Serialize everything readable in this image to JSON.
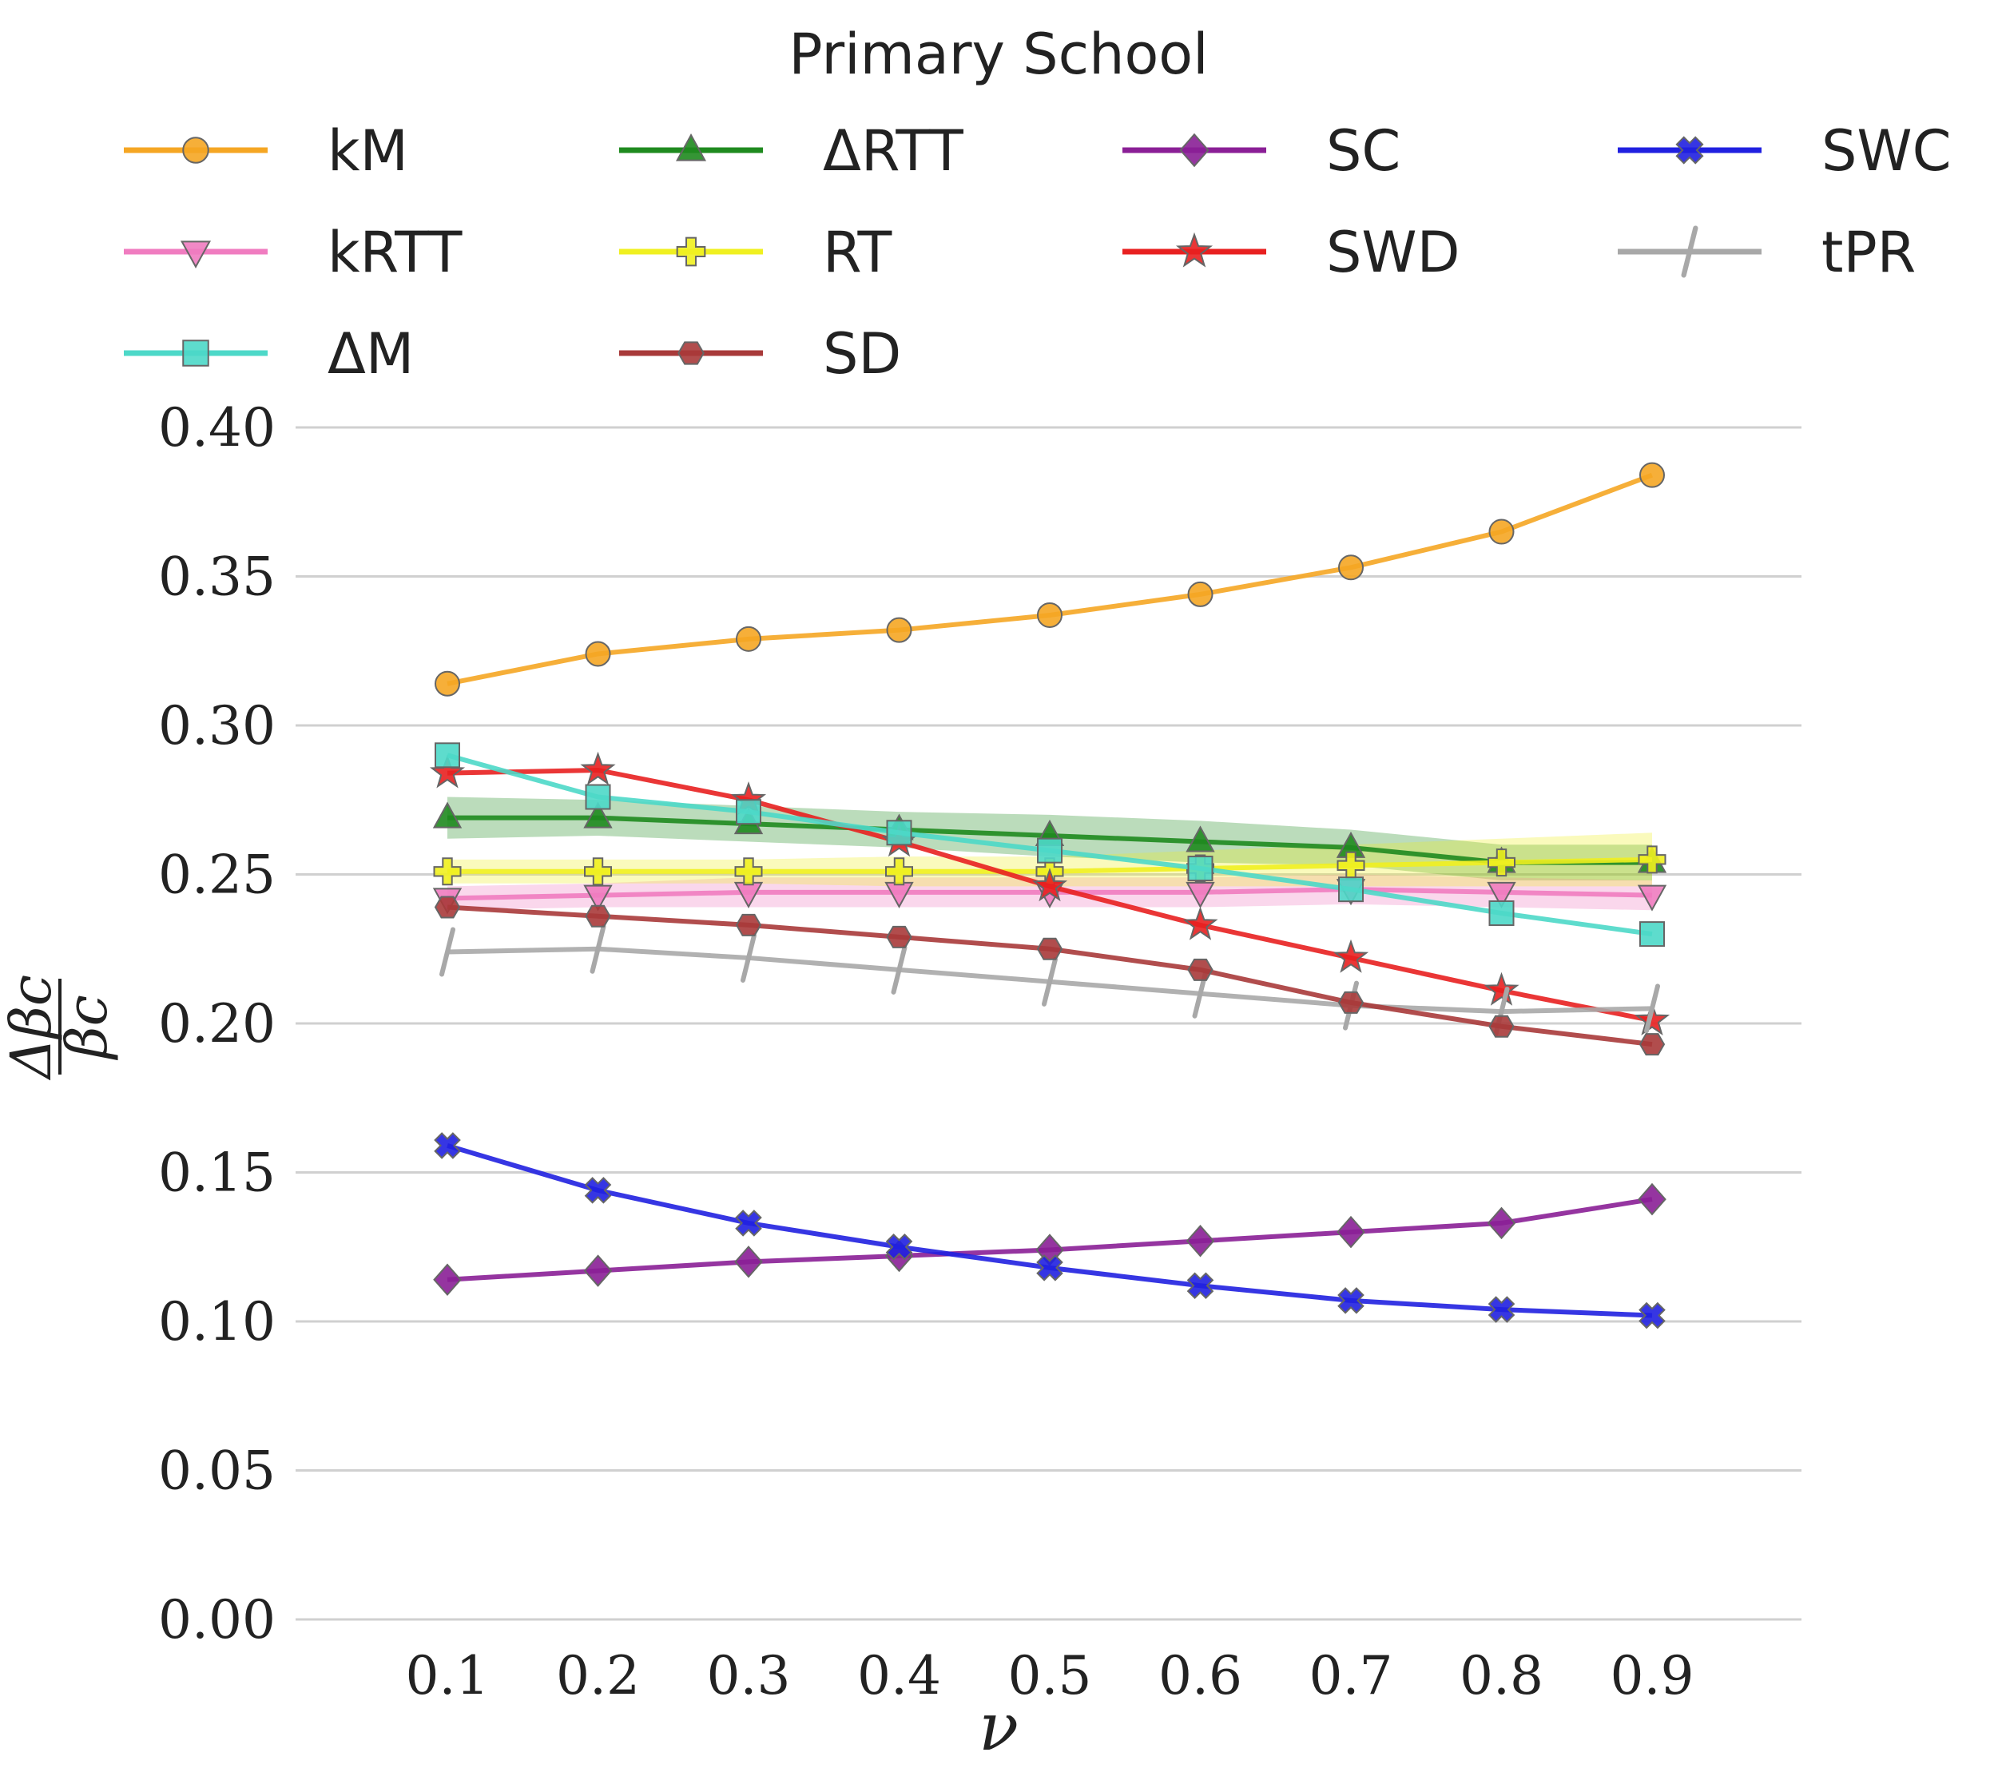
{
  "chart_data": {
    "type": "line",
    "title": "Primary School",
    "xlabel": "ν",
    "ylabel": "Δβc / βc",
    "ylabel_parts": {
      "numerator": "Δβc",
      "denominator": "βc"
    },
    "x": [
      0.1,
      0.2,
      0.3,
      0.4,
      0.5,
      0.6,
      0.7,
      0.8,
      0.9
    ],
    "x_tick_labels": [
      "0.1",
      "0.2",
      "0.3",
      "0.4",
      "0.5",
      "0.6",
      "0.7",
      "0.8",
      "0.9"
    ],
    "ylim": [
      0.0,
      0.4
    ],
    "y_ticks": [
      0.0,
      0.05,
      0.1,
      0.15,
      0.2,
      0.25,
      0.3,
      0.35,
      0.4
    ],
    "y_tick_labels": [
      "0.00",
      "0.05",
      "0.10",
      "0.15",
      "0.20",
      "0.25",
      "0.30",
      "0.35",
      "0.40"
    ],
    "grid": "horizontal",
    "legend_position": "top",
    "series": [
      {
        "name": "kM",
        "color": "#f5a623",
        "marker": "circle",
        "values": [
          0.314,
          0.324,
          0.329,
          0.332,
          0.337,
          0.344,
          0.353,
          0.365,
          0.384
        ]
      },
      {
        "name": "ΔRTT",
        "color": "#1f8a1f",
        "marker": "triangle-up",
        "values": [
          0.269,
          0.269,
          0.267,
          0.265,
          0.263,
          0.261,
          0.259,
          0.254,
          0.254
        ],
        "band": [
          0.007,
          0.006,
          0.006,
          0.006,
          0.007,
          0.007,
          0.006,
          0.006,
          0.006
        ]
      },
      {
        "name": "SC",
        "color": "#8a1f96",
        "marker": "diamond",
        "values": [
          0.114,
          0.117,
          0.12,
          0.122,
          0.124,
          0.127,
          0.13,
          0.133,
          0.141
        ]
      },
      {
        "name": "SWC",
        "color": "#2020e0",
        "marker": "x",
        "values": [
          0.159,
          0.144,
          0.133,
          0.125,
          0.118,
          0.112,
          0.107,
          0.104,
          0.102
        ]
      },
      {
        "name": "kRTT",
        "color": "#f07cc0",
        "marker": "triangle-down",
        "values": [
          0.242,
          0.243,
          0.244,
          0.244,
          0.244,
          0.244,
          0.245,
          0.244,
          0.243
        ],
        "band": [
          0.004,
          0.004,
          0.005,
          0.005,
          0.005,
          0.005,
          0.005,
          0.005,
          0.005
        ]
      },
      {
        "name": "RT",
        "color": "#f0f020",
        "marker": "plus",
        "values": [
          0.251,
          0.251,
          0.251,
          0.251,
          0.251,
          0.252,
          0.253,
          0.254,
          0.255
        ],
        "band": [
          0.004,
          0.004,
          0.004,
          0.005,
          0.005,
          0.006,
          0.007,
          0.008,
          0.009
        ]
      },
      {
        "name": "SWD",
        "color": "#e82020",
        "marker": "star",
        "values": [
          0.284,
          0.285,
          0.275,
          0.261,
          0.246,
          0.233,
          0.222,
          0.211,
          0.201
        ]
      },
      {
        "name": "tPR",
        "color": "#a8a8a8",
        "marker": "slash",
        "values": [
          0.224,
          0.225,
          0.222,
          0.218,
          0.214,
          0.21,
          0.206,
          0.204,
          0.205
        ]
      },
      {
        "name": "ΔM",
        "color": "#4dd8c8",
        "marker": "square",
        "values": [
          0.29,
          0.276,
          0.271,
          0.264,
          0.258,
          0.252,
          0.245,
          0.237,
          0.23
        ]
      },
      {
        "name": "SD",
        "color": "#a83a3a",
        "marker": "hexagon",
        "values": [
          0.239,
          0.236,
          0.233,
          0.229,
          0.225,
          0.218,
          0.207,
          0.199,
          0.193
        ]
      }
    ]
  }
}
